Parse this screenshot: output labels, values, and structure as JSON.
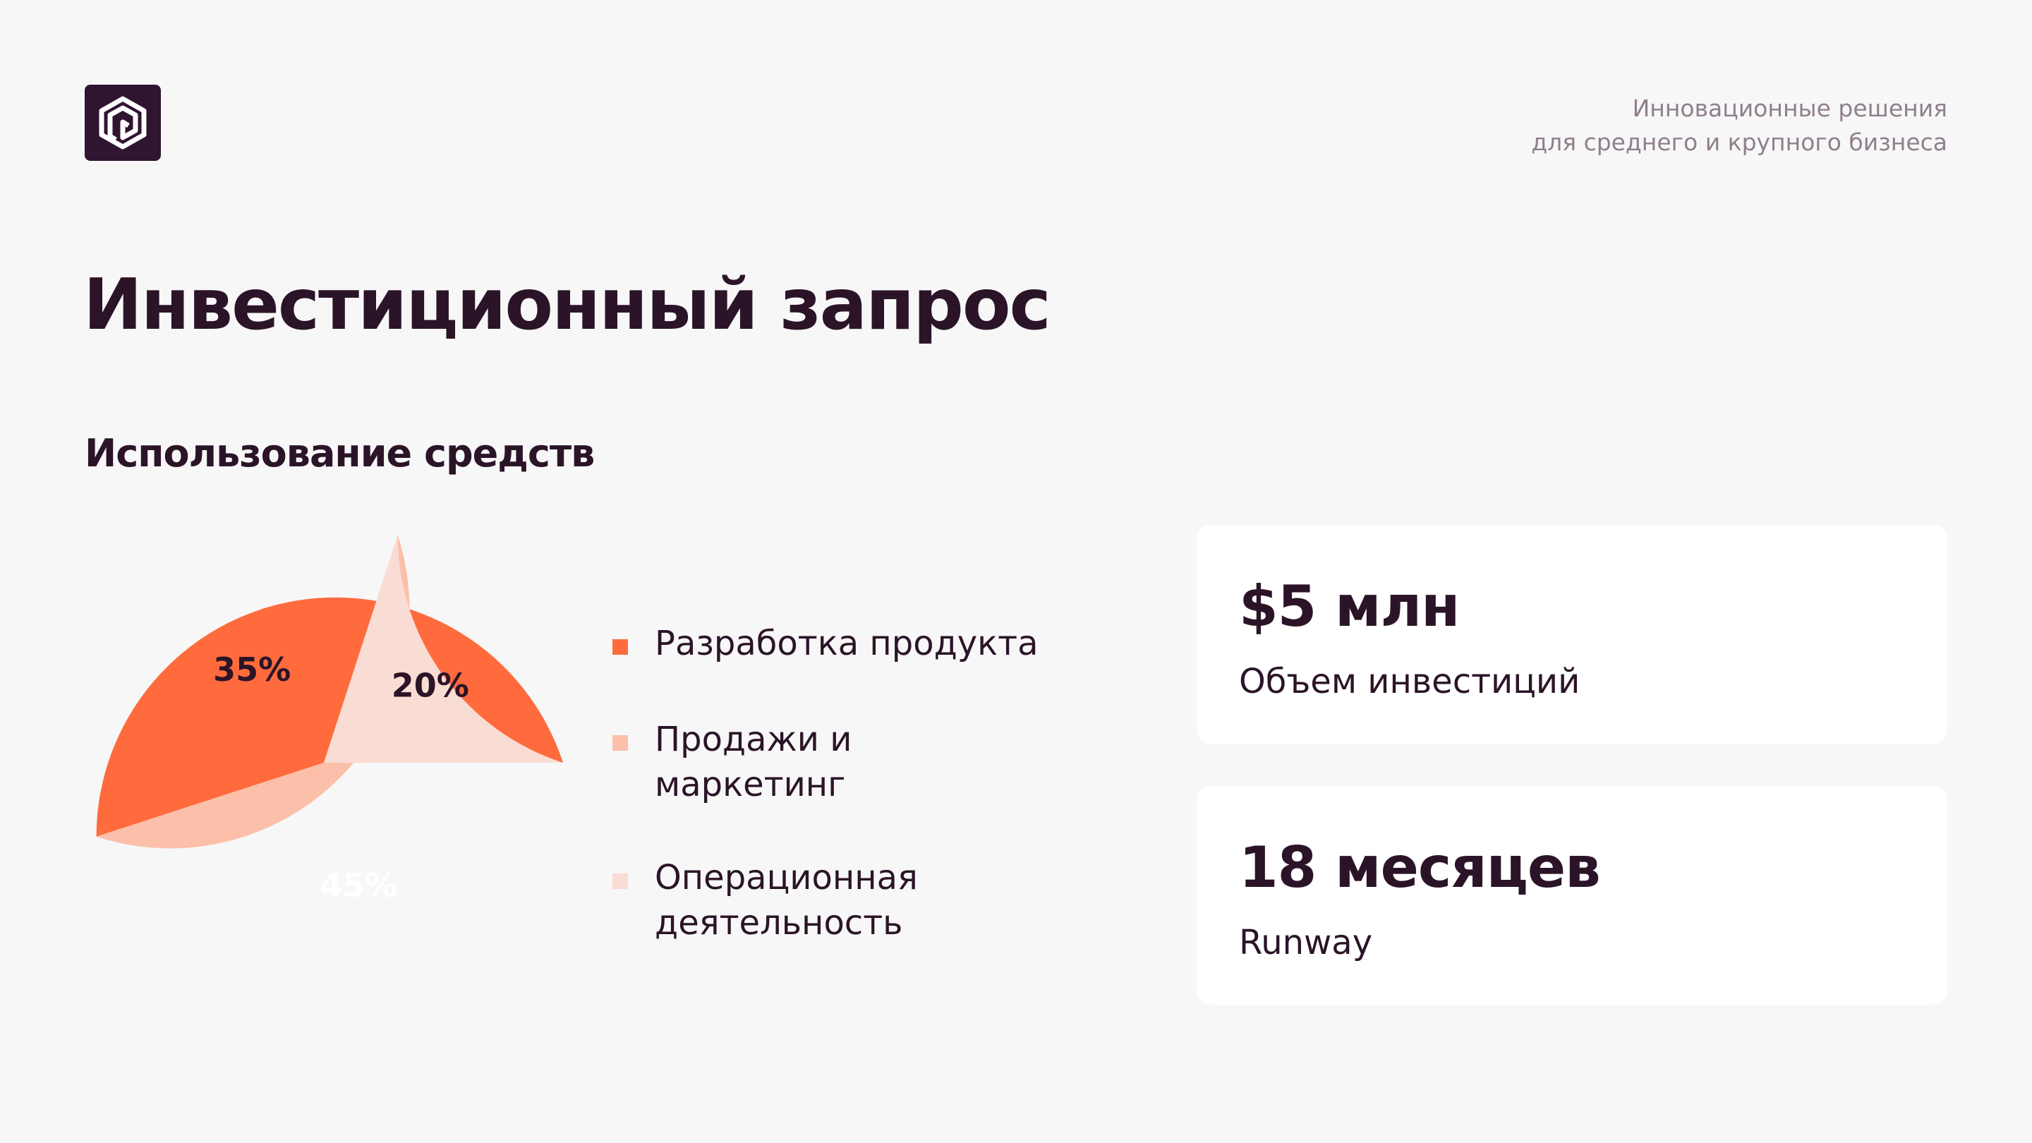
{
  "header": {
    "logo": "logo-icon",
    "tagline_line1": "Инновационные решения",
    "tagline_line2": "для среднего и крупного бизнеса"
  },
  "title": "Инвестиционный запрос",
  "section_title": "Использование средств",
  "colors": {
    "accent": "#ff6b3d",
    "secondary": "#fcbfa9",
    "tertiary": "#f9dcd3",
    "text": "#2b1428",
    "muted": "#8f7f8d",
    "background": "#f7f7f7",
    "card": "#ffffff"
  },
  "chart_data": {
    "type": "pie",
    "title": "Использование средств",
    "labels": [
      "Разработка продукта",
      "Продажи и маркетинг",
      "Операционная деятельность"
    ],
    "values": [
      45,
      35,
      20
    ],
    "value_labels": [
      "45%",
      "35%",
      "20%"
    ],
    "colors": [
      "#ff6b3d",
      "#fcbfa9",
      "#f9dcd3"
    ],
    "label_colors": [
      "#ffffff",
      "#2b1428",
      "#2b1428"
    ],
    "legend": "right"
  },
  "metrics": [
    {
      "value": "$5 млн",
      "caption": "Объем инвестиций"
    },
    {
      "value": "18 месяцев",
      "caption": "Runway"
    }
  ]
}
